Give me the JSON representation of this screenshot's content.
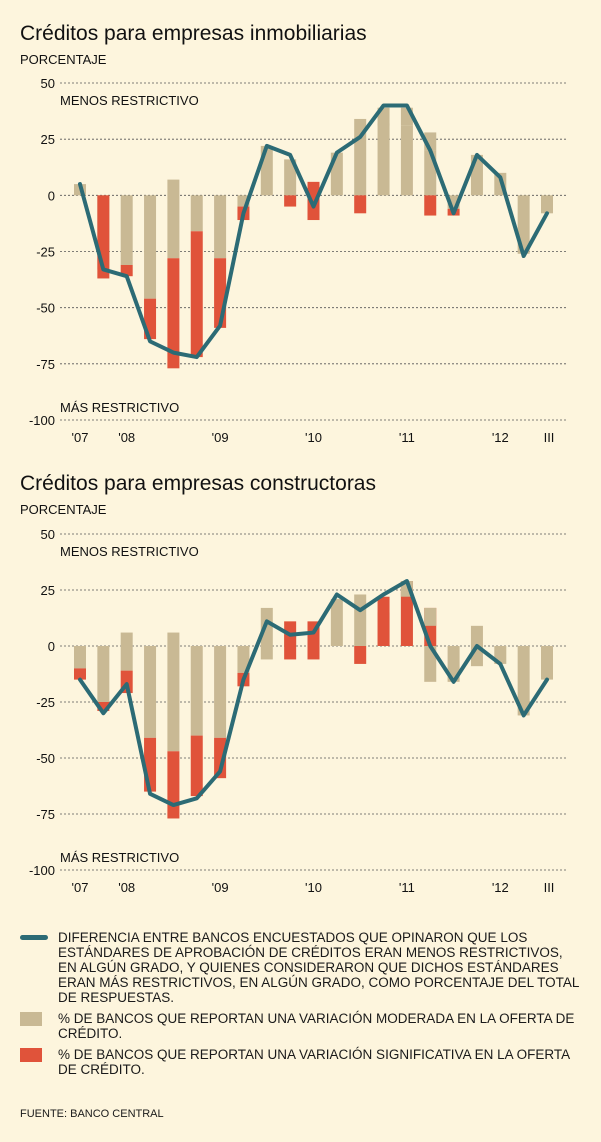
{
  "colors": {
    "background": "#fdf5dd",
    "moderate": "#c9b994",
    "significant": "#e0533a",
    "line": "#2c6b75"
  },
  "chart_data": [
    {
      "type": "bar",
      "title": "Créditos para empresas inmobiliarias",
      "ylabel": "PORCENTAJE",
      "ylim": [
        -100,
        50
      ],
      "yticks": [
        "50",
        "25",
        "0",
        "-25",
        "-50",
        "-75",
        "-100"
      ],
      "yticks_values": [
        50,
        25,
        0,
        -25,
        -50,
        -75,
        -100
      ],
      "top_note": "MENOS RESTRICTIVO",
      "bottom_note": "MÁS RESTRICTIVO",
      "xticks": [
        {
          "label": "'07",
          "index": 0
        },
        {
          "label": "'08",
          "index": 2
        },
        {
          "label": "'09",
          "index": 6
        },
        {
          "label": "'10",
          "index": 10
        },
        {
          "label": "'11",
          "index": 14
        },
        {
          "label": "'12",
          "index": 18
        },
        {
          "label": "III",
          "index": 20
        }
      ],
      "series": [
        {
          "name": "moderate",
          "values": [
            [
              0,
              5
            ],
            [
              0,
              -33
            ],
            [
              -31,
              0
            ],
            [
              -46,
              0
            ],
            [
              -28,
              7
            ],
            [
              -16,
              0
            ],
            [
              -28,
              0
            ],
            [
              -5,
              0
            ],
            [
              0,
              22
            ],
            [
              0,
              16
            ],
            [
              0,
              0
            ],
            [
              0,
              19
            ],
            [
              0,
              34
            ],
            [
              0,
              32
            ],
            [
              0,
              31
            ],
            [
              0,
              20
            ],
            [
              -6,
              0
            ],
            [
              0,
              18
            ],
            [
              0,
              10
            ],
            [
              -26,
              0
            ],
            [
              -8,
              0
            ]
          ]
        },
        {
          "name": "significant",
          "values": [
            [
              0,
              0
            ],
            [
              -37,
              0
            ],
            [
              -36,
              -31
            ],
            [
              -64,
              -46
            ],
            [
              -77,
              -28
            ],
            [
              -72,
              -16
            ],
            [
              -59,
              -28
            ],
            [
              -11,
              -5
            ],
            [
              0,
              0
            ],
            [
              -5,
              0
            ],
            [
              -11,
              6
            ],
            [
              0,
              0
            ],
            [
              -8,
              0
            ],
            [
              0,
              0
            ],
            [
              0,
              0
            ],
            [
              -9,
              0
            ],
            [
              -9,
              -6
            ],
            [
              0,
              0
            ],
            [
              0,
              0
            ],
            [
              0,
              0
            ],
            [
              0,
              0
            ]
          ]
        },
        {
          "name": "line",
          "values": [
            5,
            -33,
            -36,
            -65,
            -70,
            -72,
            -58,
            -8,
            22,
            18,
            -5,
            19,
            26,
            40,
            40,
            20,
            -8,
            18,
            8,
            -27,
            -8
          ]
        }
      ],
      "overlay": [
        {
          "index": 13,
          "range": [
            31,
            39
          ]
        },
        {
          "index": 14,
          "range": [
            31,
            39
          ]
        },
        {
          "index": 15,
          "range": [
            20,
            28
          ]
        }
      ]
    },
    {
      "type": "bar",
      "title": "Créditos para empresas constructoras",
      "ylabel": "PORCENTAJE",
      "ylim": [
        -100,
        50
      ],
      "yticks": [
        "50",
        "25",
        "0",
        "-25",
        "-50",
        "-75",
        "-100"
      ],
      "yticks_values": [
        50,
        25,
        0,
        -25,
        -50,
        -75,
        -100
      ],
      "top_note": "MENOS RESTRICTIVO",
      "bottom_note": "MÁS RESTRICTIVO",
      "xticks": [
        {
          "label": "'07",
          "index": 0
        },
        {
          "label": "'08",
          "index": 2
        },
        {
          "label": "'09",
          "index": 6
        },
        {
          "label": "'10",
          "index": 10
        },
        {
          "label": "'11",
          "index": 14
        },
        {
          "label": "'12",
          "index": 18
        },
        {
          "label": "III",
          "index": 20
        }
      ],
      "series": [
        {
          "name": "moderate",
          "values": [
            [
              -10,
              0
            ],
            [
              -25,
              0
            ],
            [
              -11,
              6
            ],
            [
              -41,
              0
            ],
            [
              -47,
              6
            ],
            [
              -40,
              0
            ],
            [
              -41,
              0
            ],
            [
              -12,
              0
            ],
            [
              -6,
              17
            ],
            [
              0,
              5
            ],
            [
              0,
              6
            ],
            [
              0,
              21
            ],
            [
              0,
              23
            ],
            [
              0,
              15
            ],
            [
              0,
              24
            ],
            [
              -16,
              0
            ],
            [
              -16,
              0
            ],
            [
              -9,
              9
            ],
            [
              -8,
              0
            ],
            [
              -31,
              0
            ],
            [
              -15,
              0
            ]
          ]
        },
        {
          "name": "significant",
          "values": [
            [
              -15,
              -10
            ],
            [
              -29,
              -25
            ],
            [
              -21,
              -11
            ],
            [
              -65,
              -41
            ],
            [
              -77,
              -47
            ],
            [
              -67,
              -40
            ],
            [
              -59,
              -41
            ],
            [
              -18,
              -12
            ],
            [
              0,
              0
            ],
            [
              -6,
              11
            ],
            [
              -6,
              11
            ],
            [
              0,
              0
            ],
            [
              -8,
              0
            ],
            [
              0,
              22
            ],
            [
              0,
              29
            ],
            [
              0,
              17
            ],
            [
              0,
              0
            ],
            [
              0,
              0
            ],
            [
              0,
              0
            ],
            [
              0,
              0
            ],
            [
              0,
              0
            ]
          ]
        },
        {
          "name": "line",
          "values": [
            -15,
            -30,
            -17,
            -66,
            -71,
            -68,
            -56,
            -15,
            11,
            5,
            6,
            23,
            16,
            23,
            29,
            0,
            -16,
            0,
            -8,
            -31,
            -15
          ]
        }
      ],
      "overlay": [
        {
          "index": 14,
          "range": [
            22,
            29
          ]
        },
        {
          "index": 15,
          "range": [
            9,
            17
          ]
        }
      ]
    }
  ],
  "legend": [
    {
      "key": "line",
      "text": "DIFERENCIA ENTRE BANCOS ENCUESTADOS QUE OPINARON QUE LOS ESTÁNDARES DE APROBACIÓN DE CRÉDITOS ERAN MENOS RESTRICTIVOS, EN ALGÚN GRADO, Y QUIENES CONSIDERARON QUE DICHOS ESTÁNDARES ERAN MÁS RESTRICTIVOS, EN ALGÚN GRADO, COMO PORCENTAJE DEL TOTAL DE RESPUESTAS."
    },
    {
      "key": "moderate",
      "text": "% DE BANCOS QUE REPORTAN UNA VARIACIÓN MODERADA EN LA OFERTA DE CRÉDITO."
    },
    {
      "key": "significant",
      "text": "% DE BANCOS QUE REPORTAN UNA VARIACIÓN SIGNIFICATIVA EN LA OFERTA DE CRÉDITO."
    }
  ],
  "source": "FUENTE: BANCO CENTRAL"
}
